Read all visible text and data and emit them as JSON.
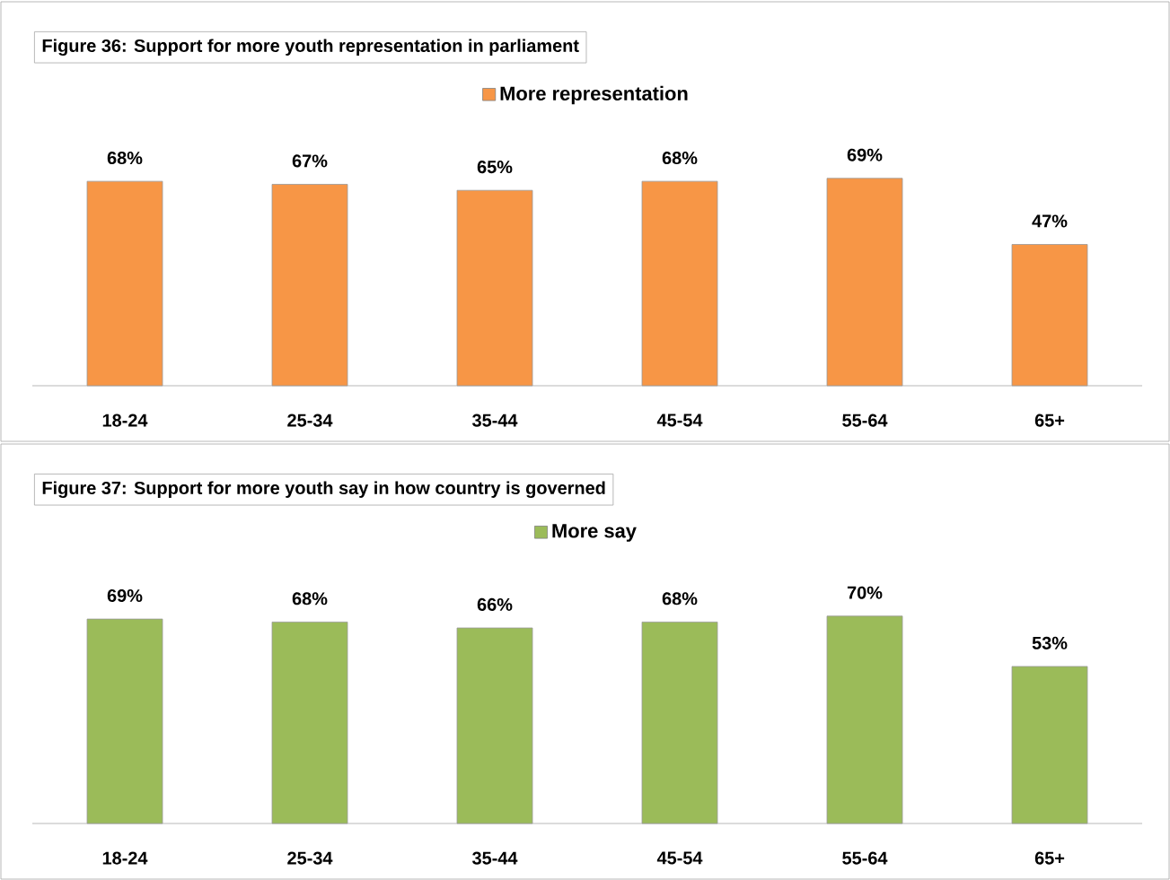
{
  "chart_data": [
    {
      "type": "bar",
      "title": "Figure 36: Support for more youth representation in parliament",
      "categories": [
        "18-24",
        "25-34",
        "35-44",
        "45-54",
        "55-64",
        "65+"
      ],
      "legend": "top",
      "series": [
        {
          "name": "More representation",
          "color": "#f79646",
          "values": [
            68,
            67,
            65,
            68,
            69,
            47
          ],
          "value_labels": [
            "68%",
            "67%",
            "65%",
            "68%",
            "69%",
            "47%"
          ]
        }
      ]
    },
    {
      "type": "bar",
      "title": "Figure 37: Support for more youth say in how country is governed",
      "categories": [
        "18-24",
        "25-34",
        "35-44",
        "45-54",
        "55-64",
        "65+"
      ],
      "legend": "top",
      "series": [
        {
          "name": "More say",
          "color": "#9bbb59",
          "values": [
            69,
            68,
            66,
            68,
            70,
            53
          ],
          "value_labels": [
            "69%",
            "68%",
            "66%",
            "68%",
            "70%",
            "53%"
          ]
        }
      ]
    }
  ]
}
